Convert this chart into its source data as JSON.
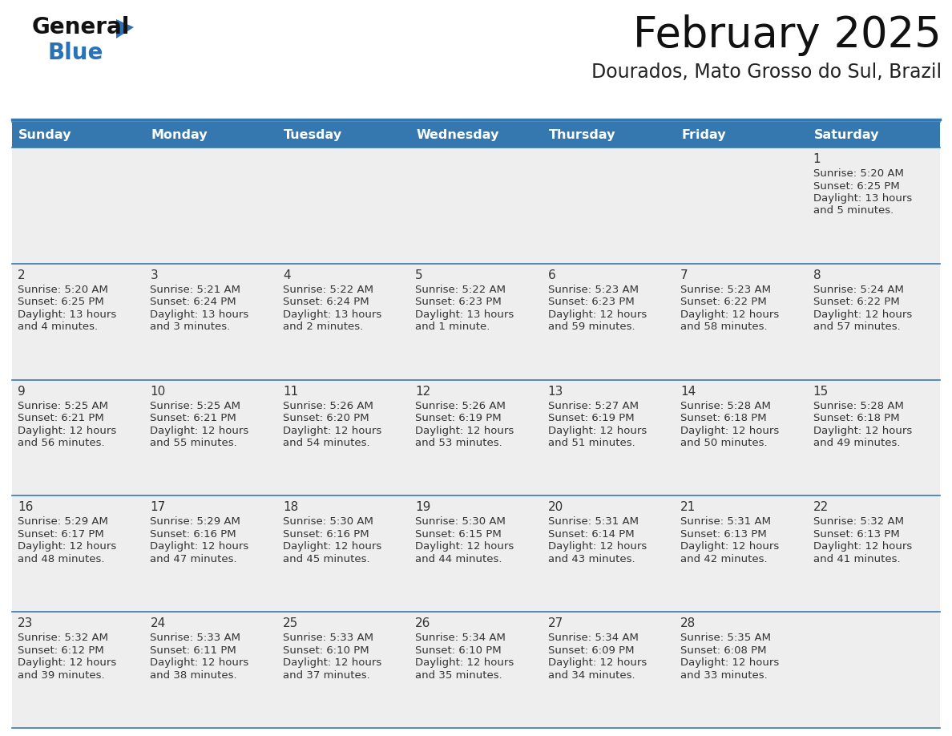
{
  "title": "February 2025",
  "subtitle": "Dourados, Mato Grosso do Sul, Brazil",
  "days_of_week": [
    "Sunday",
    "Monday",
    "Tuesday",
    "Wednesday",
    "Thursday",
    "Friday",
    "Saturday"
  ],
  "header_bg_color": "#3578b0",
  "header_text_color": "#ffffff",
  "cell_bg_color": "#eeeeee",
  "cell_bg_white": "#ffffff",
  "cell_border_color": "#3578b0",
  "day_num_color": "#333333",
  "cell_text_color": "#333333",
  "title_color": "#111111",
  "subtitle_color": "#222222",
  "logo_general_color": "#111111",
  "logo_blue_color": "#2a72b5",
  "weeks": [
    [
      null,
      null,
      null,
      null,
      null,
      null,
      1
    ],
    [
      2,
      3,
      4,
      5,
      6,
      7,
      8
    ],
    [
      9,
      10,
      11,
      12,
      13,
      14,
      15
    ],
    [
      16,
      17,
      18,
      19,
      20,
      21,
      22
    ],
    [
      23,
      24,
      25,
      26,
      27,
      28,
      null
    ]
  ],
  "day_data": {
    "1": {
      "sunrise": "5:20 AM",
      "sunset": "6:25 PM",
      "daylight": "13 hours",
      "daylight2": "and 5 minutes."
    },
    "2": {
      "sunrise": "5:20 AM",
      "sunset": "6:25 PM",
      "daylight": "13 hours",
      "daylight2": "and 4 minutes."
    },
    "3": {
      "sunrise": "5:21 AM",
      "sunset": "6:24 PM",
      "daylight": "13 hours",
      "daylight2": "and 3 minutes."
    },
    "4": {
      "sunrise": "5:22 AM",
      "sunset": "6:24 PM",
      "daylight": "13 hours",
      "daylight2": "and 2 minutes."
    },
    "5": {
      "sunrise": "5:22 AM",
      "sunset": "6:23 PM",
      "daylight": "13 hours",
      "daylight2": "and 1 minute."
    },
    "6": {
      "sunrise": "5:23 AM",
      "sunset": "6:23 PM",
      "daylight": "12 hours",
      "daylight2": "and 59 minutes."
    },
    "7": {
      "sunrise": "5:23 AM",
      "sunset": "6:22 PM",
      "daylight": "12 hours",
      "daylight2": "and 58 minutes."
    },
    "8": {
      "sunrise": "5:24 AM",
      "sunset": "6:22 PM",
      "daylight": "12 hours",
      "daylight2": "and 57 minutes."
    },
    "9": {
      "sunrise": "5:25 AM",
      "sunset": "6:21 PM",
      "daylight": "12 hours",
      "daylight2": "and 56 minutes."
    },
    "10": {
      "sunrise": "5:25 AM",
      "sunset": "6:21 PM",
      "daylight": "12 hours",
      "daylight2": "and 55 minutes."
    },
    "11": {
      "sunrise": "5:26 AM",
      "sunset": "6:20 PM",
      "daylight": "12 hours",
      "daylight2": "and 54 minutes."
    },
    "12": {
      "sunrise": "5:26 AM",
      "sunset": "6:19 PM",
      "daylight": "12 hours",
      "daylight2": "and 53 minutes."
    },
    "13": {
      "sunrise": "5:27 AM",
      "sunset": "6:19 PM",
      "daylight": "12 hours",
      "daylight2": "and 51 minutes."
    },
    "14": {
      "sunrise": "5:28 AM",
      "sunset": "6:18 PM",
      "daylight": "12 hours",
      "daylight2": "and 50 minutes."
    },
    "15": {
      "sunrise": "5:28 AM",
      "sunset": "6:18 PM",
      "daylight": "12 hours",
      "daylight2": "and 49 minutes."
    },
    "16": {
      "sunrise": "5:29 AM",
      "sunset": "6:17 PM",
      "daylight": "12 hours",
      "daylight2": "and 48 minutes."
    },
    "17": {
      "sunrise": "5:29 AM",
      "sunset": "6:16 PM",
      "daylight": "12 hours",
      "daylight2": "and 47 minutes."
    },
    "18": {
      "sunrise": "5:30 AM",
      "sunset": "6:16 PM",
      "daylight": "12 hours",
      "daylight2": "and 45 minutes."
    },
    "19": {
      "sunrise": "5:30 AM",
      "sunset": "6:15 PM",
      "daylight": "12 hours",
      "daylight2": "and 44 minutes."
    },
    "20": {
      "sunrise": "5:31 AM",
      "sunset": "6:14 PM",
      "daylight": "12 hours",
      "daylight2": "and 43 minutes."
    },
    "21": {
      "sunrise": "5:31 AM",
      "sunset": "6:13 PM",
      "daylight": "12 hours",
      "daylight2": "and 42 minutes."
    },
    "22": {
      "sunrise": "5:32 AM",
      "sunset": "6:13 PM",
      "daylight": "12 hours",
      "daylight2": "and 41 minutes."
    },
    "23": {
      "sunrise": "5:32 AM",
      "sunset": "6:12 PM",
      "daylight": "12 hours",
      "daylight2": "and 39 minutes."
    },
    "24": {
      "sunrise": "5:33 AM",
      "sunset": "6:11 PM",
      "daylight": "12 hours",
      "daylight2": "and 38 minutes."
    },
    "25": {
      "sunrise": "5:33 AM",
      "sunset": "6:10 PM",
      "daylight": "12 hours",
      "daylight2": "and 37 minutes."
    },
    "26": {
      "sunrise": "5:34 AM",
      "sunset": "6:10 PM",
      "daylight": "12 hours",
      "daylight2": "and 35 minutes."
    },
    "27": {
      "sunrise": "5:34 AM",
      "sunset": "6:09 PM",
      "daylight": "12 hours",
      "daylight2": "and 34 minutes."
    },
    "28": {
      "sunrise": "5:35 AM",
      "sunset": "6:08 PM",
      "daylight": "12 hours",
      "daylight2": "and 33 minutes."
    }
  }
}
